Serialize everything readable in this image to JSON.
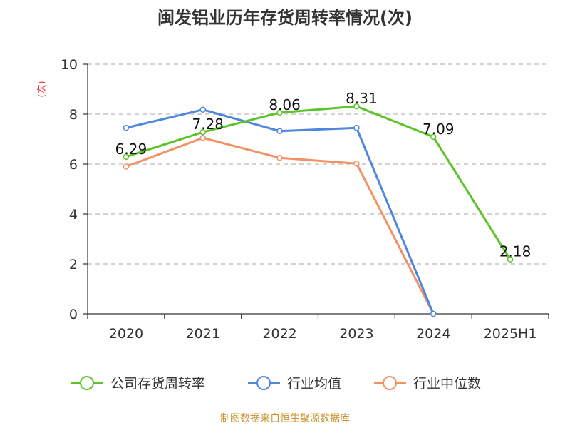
{
  "chart_data": {
    "type": "line",
    "title": "闽发铝业历年存货周转率情况(次)",
    "ylabel": "(次)",
    "categories": [
      "2020",
      "2021",
      "2022",
      "2023",
      "2024",
      "2025H1"
    ],
    "ylim": [
      0,
      10
    ],
    "yticks": [
      0,
      2,
      4,
      6,
      8,
      10
    ],
    "grid": true,
    "legend_position": "bottom",
    "series": [
      {
        "name": "公司存货周转率",
        "color": "#5bc42a",
        "values": [
          6.29,
          7.28,
          8.06,
          8.31,
          7.09,
          2.18
        ],
        "labels": [
          "6.29",
          "7.28",
          "8.06",
          "8.31",
          "7.09",
          "2.18"
        ]
      },
      {
        "name": "行业均值",
        "color": "#4f86de",
        "values": [
          7.45,
          8.18,
          7.32,
          7.45,
          0,
          null
        ]
      },
      {
        "name": "行业中位数",
        "color": "#f39163",
        "values": [
          5.9,
          7.05,
          6.25,
          6.02,
          0,
          null
        ]
      }
    ]
  },
  "source": "制图数据来自恒生聚源数据库",
  "colors": {
    "axis": "#333333",
    "grid": "#bbbbbb",
    "ylabel": "#e8362e",
    "source": "#c8922e"
  }
}
